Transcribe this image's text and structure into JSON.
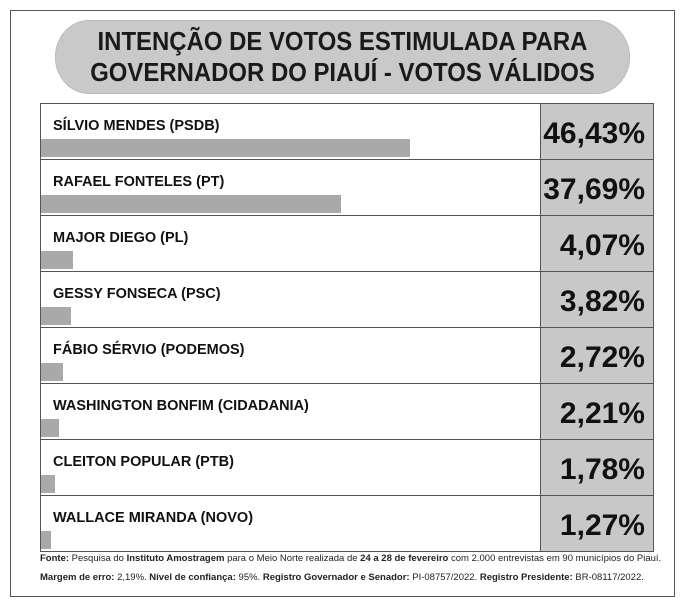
{
  "chart_data": {
    "type": "bar",
    "orientation": "horizontal",
    "title": "INTENÇÃO DE VOTOS ESTIMULADA PARA GOVERNADOR DO PIAUÍ - VOTOS VÁLIDOS",
    "title_lines": [
      "INTENÇÃO DE VOTOS ESTIMULADA PARA",
      "GOVERNADOR DO PIAUÍ - VOTOS VÁLIDOS"
    ],
    "categories": [
      "SÍLVIO MENDES (PSDB)",
      "RAFAEL FONTELES (PT)",
      "MAJOR DIEGO (PL)",
      "GESSY FONSECA (PSC)",
      "FÁBIO SÉRVIO (PODEMOS)",
      "WASHINGTON BONFIM (CIDADANIA)",
      "CLEITON POPULAR (PTB)",
      "WALLACE MIRANDA (NOVO)"
    ],
    "values": [
      46.43,
      37.69,
      4.07,
      3.82,
      2.72,
      2.21,
      1.78,
      1.27
    ],
    "labels": [
      "46,43%",
      "37,69%",
      "4,07%",
      "3,82%",
      "2,72%",
      "2,21%",
      "1,78%",
      "1,27%"
    ],
    "bar_color": "#a9a9a9",
    "value_box_color": "#c8c8c8"
  },
  "footer": {
    "line1": [
      [
        "Fonte:",
        true
      ],
      [
        " Pesquisa do ",
        false
      ],
      [
        "Instituto Amostragem",
        true
      ],
      [
        " para o Meio Norte realizada de ",
        false
      ],
      [
        "24 a 28 de fevereiro",
        true
      ],
      [
        " com 2.000 entrevistas em 90 municípios do Piauí.",
        false
      ]
    ],
    "line2": [
      [
        "Margem de erro:",
        true
      ],
      [
        " 2,19%. ",
        false
      ],
      [
        "Nível de confiança:",
        true
      ],
      [
        " 95%. ",
        false
      ],
      [
        "Registro Governador e Senador:",
        true
      ],
      [
        " PI-08757/2022. ",
        false
      ],
      [
        "Registro Presidente:",
        true
      ],
      [
        " BR-08117/2022.",
        false
      ]
    ]
  }
}
